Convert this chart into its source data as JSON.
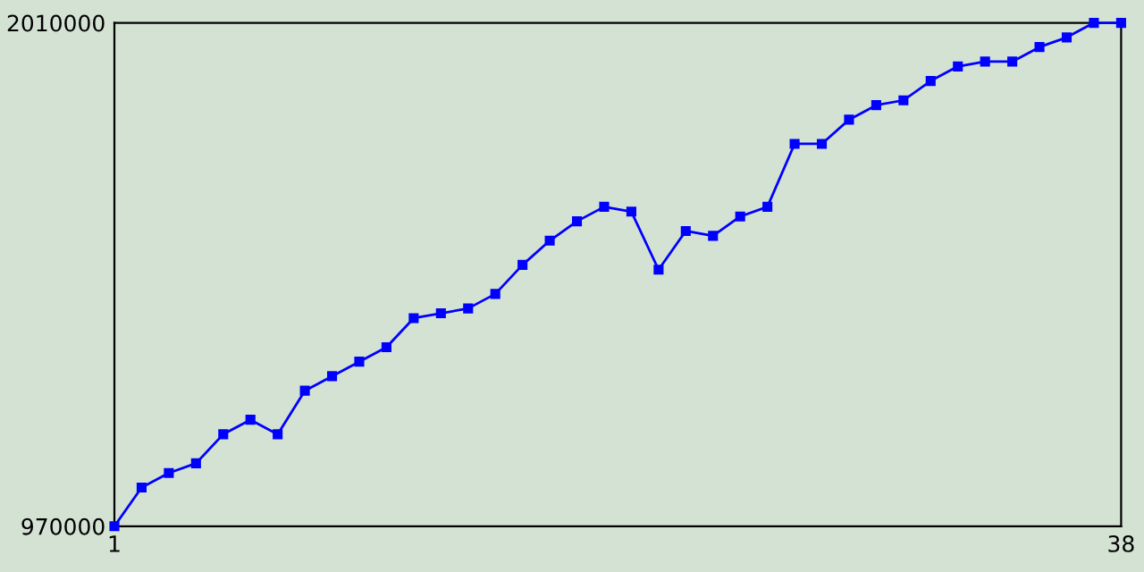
{
  "chart_data": {
    "type": "line",
    "x": [
      1,
      2,
      3,
      4,
      5,
      6,
      7,
      8,
      9,
      10,
      11,
      12,
      13,
      14,
      15,
      16,
      17,
      18,
      19,
      20,
      21,
      22,
      23,
      24,
      25,
      26,
      27,
      28,
      29,
      30,
      31,
      32,
      33,
      34,
      35,
      36,
      37,
      38
    ],
    "series": [
      {
        "color": "#0000ff",
        "values": [
          970000,
          1050000,
          1080000,
          1100000,
          1160000,
          1190000,
          1160000,
          1250000,
          1280000,
          1310000,
          1340000,
          1400000,
          1410000,
          1420000,
          1450000,
          1510000,
          1560000,
          1600000,
          1630000,
          1620000,
          1500000,
          1580000,
          1570000,
          1610000,
          1630000,
          1760000,
          1760000,
          1810000,
          1840000,
          1850000,
          1890000,
          1920000,
          1930000,
          1930000,
          1960000,
          1980000,
          2010000,
          2010000
        ]
      }
    ],
    "xlim": [
      1,
      38
    ],
    "xticks": [
      1,
      38
    ],
    "ylim": [
      970000,
      2010000
    ],
    "yticks": [
      970000,
      2010000
    ],
    "grid": false,
    "legend": false,
    "marker": "square",
    "line_style": "solid"
  }
}
